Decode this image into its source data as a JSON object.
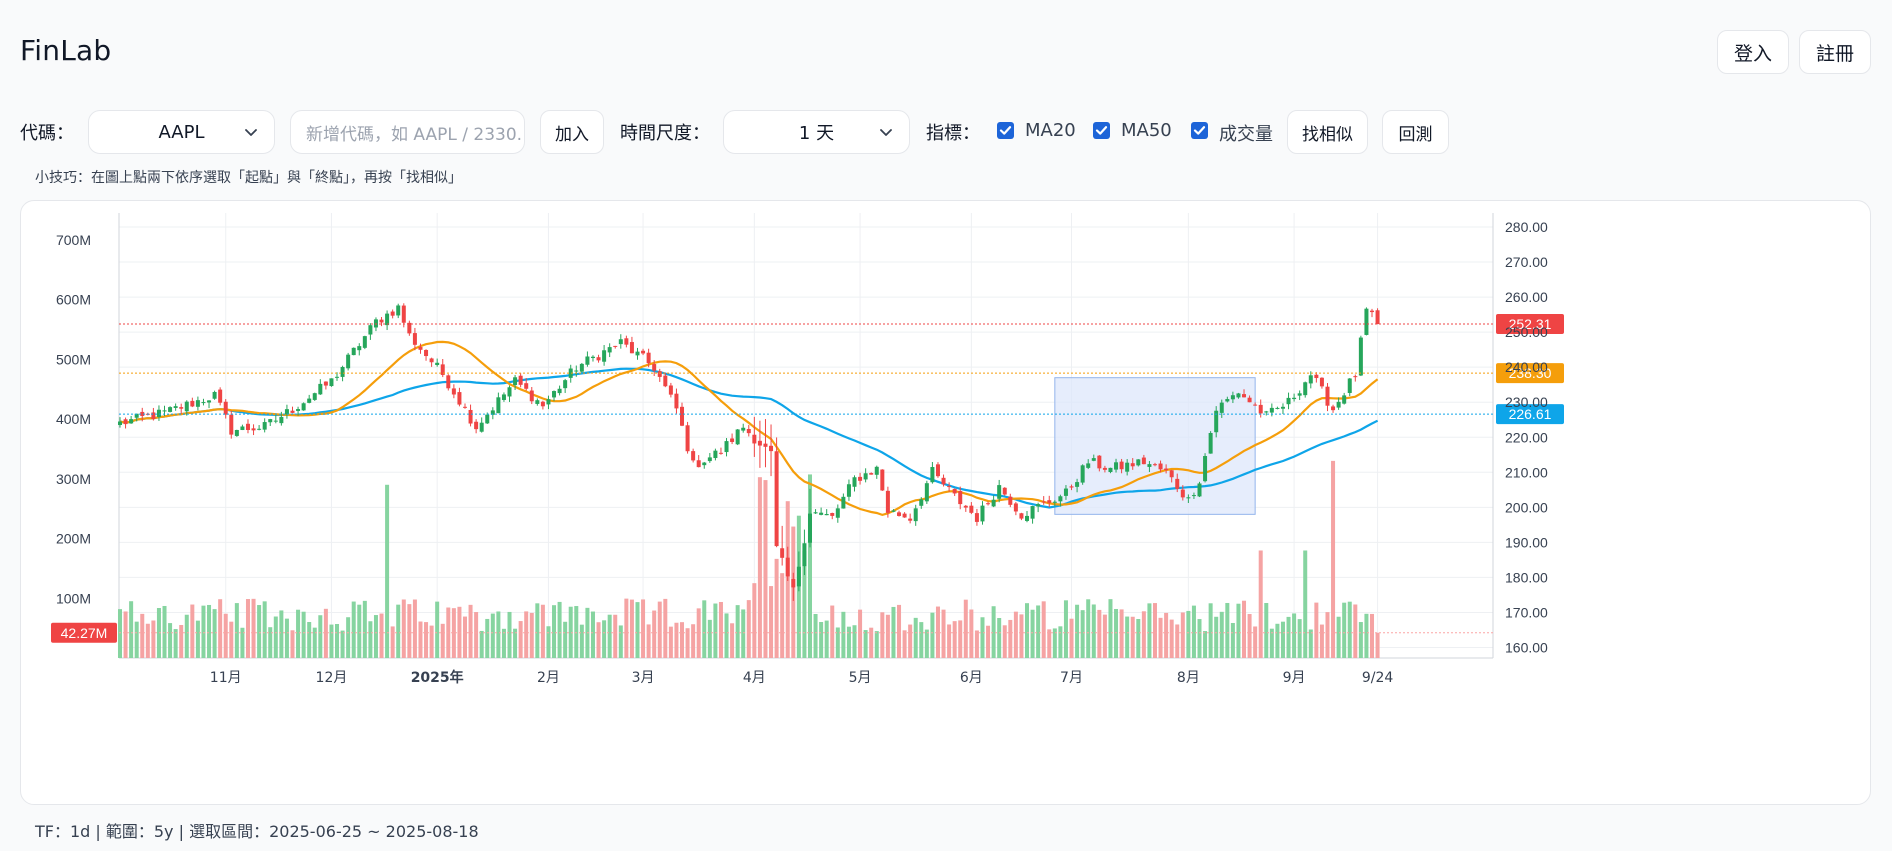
{
  "app": {
    "title": "FinLab"
  },
  "auth": {
    "login": "登入",
    "register": "註冊"
  },
  "controls": {
    "ticker_label": "代碼：",
    "ticker_value": "AAPL",
    "add_placeholder": "新增代碼，如 AAPL / 2330.",
    "add_button": "加入",
    "timeframe_label": "時間尺度：",
    "timeframe_value": "1 天",
    "indicator_label": "指標：",
    "indicators": [
      {
        "label": "MA20",
        "checked": true
      },
      {
        "label": "MA50",
        "checked": true
      },
      {
        "label": "成交量",
        "checked": true
      }
    ],
    "find_similar": "找相似",
    "backtest": "回測"
  },
  "tip": "小技巧：在圖上點兩下依序選取「起點」與「終點」，再按「找相似」",
  "footer": "TF：1d | 範圍：5y | 選取區間：2025-06-25 ~ 2025-08-18",
  "colors": {
    "up": "#26a65b",
    "down": "#ef4444",
    "vol_up": "#86d4a0",
    "vol_down": "#f5a3a3",
    "ma20": "#f59e0b",
    "ma50": "#0ea5e9",
    "selection": "#dbe5fb"
  },
  "chart_data": {
    "type": "candlestick",
    "title": "",
    "price_axis": {
      "position": "right",
      "ticks": [
        "280.00",
        "270.00",
        "260.00",
        "250.00",
        "240.00",
        "230.00",
        "220.00",
        "210.00",
        "200.00",
        "190.00",
        "180.00",
        "170.00",
        "160.00"
      ],
      "range": [
        157,
        284
      ]
    },
    "volume_axis": {
      "position": "left",
      "ticks": [
        "700M",
        "600M",
        "500M",
        "400M",
        "300M",
        "200M",
        "100M"
      ],
      "range": [
        0,
        745
      ]
    },
    "x_ticks": [
      {
        "label": "11月",
        "bold": false,
        "i": 19
      },
      {
        "label": "12月",
        "bold": false,
        "i": 38
      },
      {
        "label": "2025年",
        "bold": true,
        "i": 57
      },
      {
        "label": "2月",
        "bold": false,
        "i": 77
      },
      {
        "label": "3月",
        "bold": false,
        "i": 94
      },
      {
        "label": "4月",
        "bold": false,
        "i": 114
      },
      {
        "label": "5月",
        "bold": false,
        "i": 133
      },
      {
        "label": "6月",
        "bold": false,
        "i": 153
      },
      {
        "label": "7月",
        "bold": false,
        "i": 171
      },
      {
        "label": "8月",
        "bold": false,
        "i": 192
      },
      {
        "label": "9月",
        "bold": false,
        "i": 211
      },
      {
        "label": "9/24",
        "bold": false,
        "i": 226
      }
    ],
    "price_labels": [
      {
        "label": "252.31",
        "value": 252.31,
        "series": "last"
      },
      {
        "label": "238.30",
        "value": 238.3,
        "series": "MA20"
      },
      {
        "label": "226.61",
        "value": 226.61,
        "series": "MA50"
      }
    ],
    "volume_label": {
      "label": "42.27M",
      "value": 42.27
    },
    "selection": {
      "start": "2025-06-25",
      "end": "2025-08-18",
      "i_start": 168,
      "i_end": 204,
      "price_low": 198,
      "price_high": 237
    },
    "grid": true,
    "anchors": [
      [
        0,
        224
      ],
      [
        8,
        227
      ],
      [
        17,
        232
      ],
      [
        20,
        222
      ],
      [
        26,
        223
      ],
      [
        31,
        228
      ],
      [
        38,
        236
      ],
      [
        46,
        253
      ],
      [
        50,
        257
      ],
      [
        52,
        249
      ],
      [
        58,
        238
      ],
      [
        64,
        223
      ],
      [
        71,
        236
      ],
      [
        76,
        229
      ],
      [
        82,
        240
      ],
      [
        90,
        247
      ],
      [
        96,
        240
      ],
      [
        100,
        228
      ],
      [
        103,
        212
      ],
      [
        108,
        216
      ],
      [
        112,
        223
      ],
      [
        117,
        215
      ],
      [
        118,
        188
      ],
      [
        121,
        176
      ],
      [
        124,
        199
      ],
      [
        128,
        197
      ],
      [
        132,
        208
      ],
      [
        136,
        211
      ],
      [
        138,
        199
      ],
      [
        142,
        197
      ],
      [
        146,
        210
      ],
      [
        150,
        203
      ],
      [
        154,
        197
      ],
      [
        158,
        206
      ],
      [
        162,
        198
      ],
      [
        166,
        201
      ],
      [
        170,
        204
      ],
      [
        174,
        213
      ],
      [
        178,
        211
      ],
      [
        184,
        213
      ],
      [
        188,
        210
      ],
      [
        192,
        202
      ],
      [
        194,
        208
      ],
      [
        197,
        228
      ],
      [
        201,
        233
      ],
      [
        206,
        226
      ],
      [
        210,
        230
      ],
      [
        214,
        238
      ],
      [
        218,
        228
      ],
      [
        222,
        238
      ],
      [
        224,
        256
      ],
      [
        226,
        252.31
      ]
    ]
  }
}
